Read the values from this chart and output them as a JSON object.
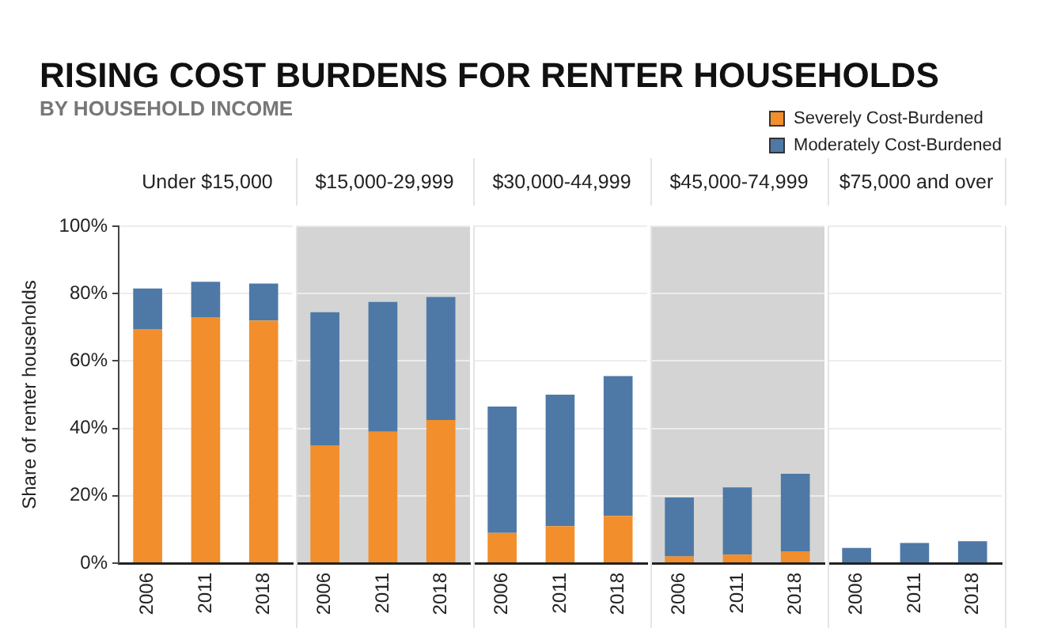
{
  "chart_data": [
    {
      "type": "bar",
      "title": "Under $15,000",
      "ylabel": "Share of renter households",
      "categories": [
        "2006",
        "2011",
        "2018"
      ],
      "stacked": true,
      "legend": "top right",
      "grid": "y",
      "ylim": [
        0,
        100
      ],
      "yticks": [
        {
          "value": 0,
          "label": "0%"
        },
        {
          "value": 20,
          "label": "20%"
        },
        {
          "value": 40,
          "label": "40%"
        },
        {
          "value": 60,
          "label": "60%"
        },
        {
          "value": 80,
          "label": "80%"
        },
        {
          "value": 100,
          "label": "100%"
        }
      ],
      "series": [
        {
          "name": "Severely Cost-Burdened",
          "color": "#f28e2b",
          "values": [
            69.5,
            73,
            72
          ]
        },
        {
          "name": "Moderately Cost-Burdened",
          "color": "#4e79a7",
          "values": [
            12,
            10.5,
            11
          ]
        }
      ],
      "annotations": [
        "RISING COST BURDENS FOR RENTER HOUSEHOLDS",
        "BY HOUSEHOLD INCOME"
      ]
    },
    {
      "type": "bar",
      "title": "$15,000-29,999",
      "categories": [
        "2006",
        "2011",
        "2018"
      ],
      "stacked": true,
      "grid": "y",
      "tick_labels": "x",
      "ylim": [
        0,
        100
      ],
      "yticks": [
        {
          "value": 0,
          "label": null
        },
        {
          "value": 20,
          "label": null
        },
        {
          "value": 40,
          "label": null
        },
        {
          "value": 60,
          "label": null
        },
        {
          "value": 80,
          "label": null
        },
        {
          "value": 100,
          "label": null
        }
      ],
      "series": [
        {
          "color": "#f28e2b",
          "values": [
            35,
            39,
            42.5
          ]
        },
        {
          "color": "#4e79a7",
          "values": [
            39.5,
            38.5,
            36.5
          ]
        }
      ]
    },
    {
      "type": "bar",
      "title": "$30,000-44,999",
      "categories": [
        "2006",
        "2011",
        "2018"
      ],
      "stacked": true,
      "grid": "y",
      "tick_labels": "x",
      "ylim": [
        0,
        100
      ],
      "yticks": [
        {
          "value": 0,
          "label": null
        },
        {
          "value": 20,
          "label": null
        },
        {
          "value": 40,
          "label": null
        },
        {
          "value": 60,
          "label": null
        },
        {
          "value": 80,
          "label": null
        },
        {
          "value": 100,
          "label": null
        }
      ],
      "series": [
        {
          "color": "#f28e2b",
          "values": [
            9,
            11,
            14
          ]
        },
        {
          "color": "#4e79a7",
          "values": [
            37.5,
            39,
            41.5
          ]
        }
      ]
    },
    {
      "type": "bar",
      "title": "$45,000-74,999",
      "categories": [
        "2006",
        "2011",
        "2018"
      ],
      "stacked": true,
      "grid": "y",
      "tick_labels": "x",
      "ylim": [
        0,
        100
      ],
      "yticks": [
        {
          "value": 0,
          "label": null
        },
        {
          "value": 20,
          "label": null
        },
        {
          "value": 40,
          "label": null
        },
        {
          "value": 60,
          "label": null
        },
        {
          "value": 80,
          "label": null
        },
        {
          "value": 100,
          "label": null
        }
      ],
      "series": [
        {
          "color": "#f28e2b",
          "values": [
            2,
            2.5,
            3.5
          ]
        },
        {
          "color": "#4e79a7",
          "values": [
            17.5,
            20,
            23
          ]
        }
      ]
    },
    {
      "type": "bar",
      "title": "$75,000 and over",
      "categories": [
        "2006",
        "2011",
        "2018"
      ],
      "stacked": true,
      "grid": "y",
      "tick_labels": "x",
      "ylim": [
        0,
        100
      ],
      "yticks": [
        {
          "value": 0,
          "label": null
        },
        {
          "value": 20,
          "label": null
        },
        {
          "value": 40,
          "label": null
        },
        {
          "value": 60,
          "label": null
        },
        {
          "value": 80,
          "label": null
        },
        {
          "value": 100,
          "label": null
        }
      ],
      "series": [
        {
          "color": "#f28e2b",
          "values": [
            0,
            0,
            0
          ]
        },
        {
          "color": "#4e79a7",
          "values": [
            4.5,
            6,
            6.5
          ]
        }
      ]
    }
  ]
}
